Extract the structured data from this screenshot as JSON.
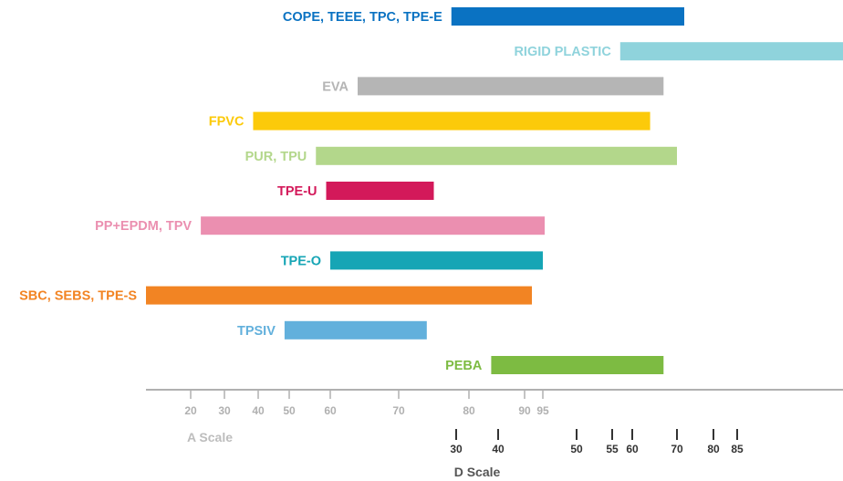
{
  "chart_data": {
    "type": "bar",
    "orientation": "horizontal-range",
    "title": "",
    "series": [
      {
        "name": "COPE, TEEE, TPC, TPE-E",
        "color": "#0a72c2",
        "start_a": 77.5,
        "end_a": "D72"
      },
      {
        "name": "RIGID PLASTIC",
        "color": "#8fd3dc",
        "start_a": "D57",
        "end_a": "D95"
      },
      {
        "name": "EVA",
        "color": "#b5b5b5",
        "start_a": 64,
        "end_a": "D67"
      },
      {
        "name": "FPVC",
        "color": "#fcca0a",
        "start_a": 38.5,
        "end_a": "D64"
      },
      {
        "name": "PUR, TPU",
        "color": "#b3d78b",
        "start_a": 56.5,
        "end_a": "D70"
      },
      {
        "name": "TPE-U",
        "color": "#d3195a",
        "start_a": 59,
        "end_a": 75
      },
      {
        "name": "PP+EPDM, TPV",
        "color": "#eb8fb0",
        "start_a": 23,
        "end_a": 96
      },
      {
        "name": "TPE-O",
        "color": "#16a5b5",
        "start_a": 60,
        "end_a": 95
      },
      {
        "name": "SBC, SEBS, TPE-S",
        "color": "#f28423",
        "start_a": 5,
        "end_a": 92
      },
      {
        "name": "TPSIV",
        "color": "#62b0dc",
        "start_a": 48.5,
        "end_a": 74
      },
      {
        "name": "PEBA",
        "color": "#7dbb42",
        "start_a": 84,
        "end_a": "D67"
      }
    ],
    "a_scale": {
      "title": "A Scale",
      "ticks": [
        20,
        30,
        40,
        50,
        60,
        70,
        80,
        90,
        95
      ]
    },
    "d_scale": {
      "title": "D Scale",
      "ticks": [
        30,
        40,
        50,
        55,
        60,
        70,
        80,
        85
      ]
    },
    "axis_color": "#b0b0b0",
    "tick_label_color": "#333333",
    "a_scale_title_color": "#bdbdbd",
    "d_scale_title_color": "#555555"
  }
}
